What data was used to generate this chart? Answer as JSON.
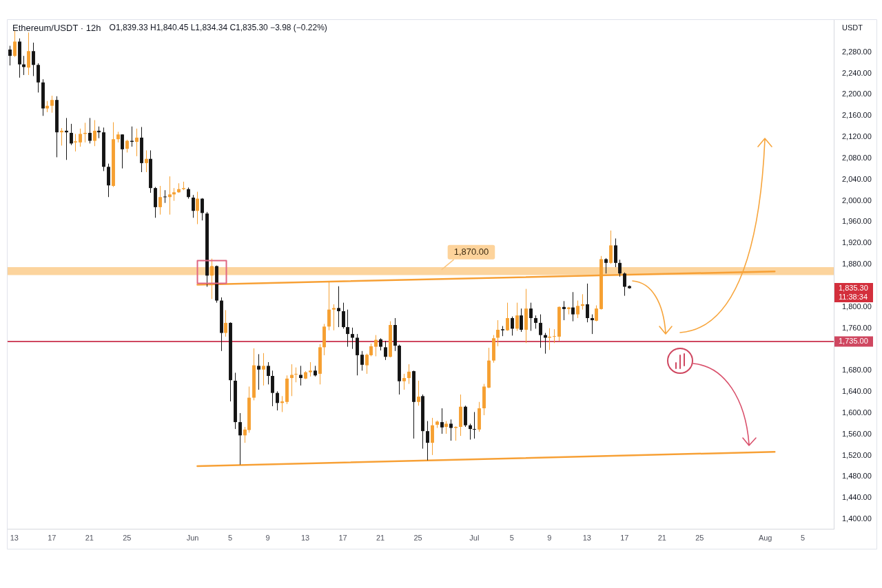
{
  "chart_data": {
    "type": "candlestick",
    "title": "Ethereum/USDT · 12h",
    "subtitle": "O1,839.33 H1,840.45 L1,834.34 C1,835.30 −3.98 (−0.22%)",
    "ylabel": "USDT",
    "x": [
      "--05-12T12:00",
      "--05-13T00:00",
      "--05-13T12:00",
      "--05-14T00:00",
      "--05-14T12:00",
      "--05-15T00:00",
      "--05-15T12:00",
      "--05-16T00:00",
      "--05-16T12:00",
      "--05-17T00:00",
      "--05-17T12:00",
      "--05-18T00:00",
      "--05-18T12:00",
      "--05-19T00:00",
      "--05-19T12:00",
      "--05-20T00:00",
      "--05-20T12:00",
      "--05-21T00:00",
      "--05-21T12:00",
      "--05-22T00:00",
      "--05-22T12:00",
      "--05-23T00:00",
      "--05-23T12:00",
      "--05-24T00:00",
      "--05-24T12:00",
      "--05-25T00:00",
      "--05-25T12:00",
      "--05-26T00:00",
      "--05-26T12:00",
      "--05-27T00:00",
      "--05-27T12:00",
      "--05-28T00:00",
      "--05-28T12:00",
      "--05-29T00:00",
      "--05-29T12:00",
      "--05-30T00:00",
      "--05-30T12:00",
      "--05-31T00:00",
      "--05-31T12:00",
      "--06-01T00:00",
      "--06-01T12:00",
      "--06-02T00:00",
      "--06-02T12:00",
      "--06-03T00:00",
      "--06-03T12:00",
      "--06-04T00:00",
      "--06-04T12:00",
      "--06-05T00:00",
      "--06-05T12:00",
      "--06-06T00:00",
      "--06-06T12:00",
      "--06-07T00:00",
      "--06-07T12:00",
      "--06-08T00:00",
      "--06-08T12:00",
      "--06-09T00:00",
      "--06-09T12:00",
      "--06-10T00:00",
      "--06-10T12:00",
      "--06-11T00:00",
      "--06-11T12:00",
      "--06-12T00:00",
      "--06-12T12:00",
      "--06-13T00:00",
      "--06-13T12:00",
      "--06-14T00:00",
      "--06-14T12:00",
      "--06-15T00:00",
      "--06-15T12:00",
      "--06-16T00:00",
      "--06-16T12:00",
      "--06-17T00:00",
      "--06-17T12:00",
      "--06-18T00:00",
      "--06-18T12:00",
      "--06-19T00:00",
      "--06-19T12:00",
      "--06-20T00:00",
      "--06-20T12:00",
      "--06-21T00:00",
      "--06-21T12:00",
      "--06-22T00:00",
      "--06-22T12:00",
      "--06-23T00:00",
      "--06-23T12:00",
      "--06-24T00:00",
      "--06-24T12:00",
      "--06-25T00:00",
      "--06-25T12:00",
      "--06-26T00:00",
      "--06-26T12:00",
      "--06-27T00:00",
      "--06-27T12:00",
      "--06-28T00:00",
      "--06-28T12:00",
      "--06-29T00:00",
      "--06-29T12:00",
      "--06-30T00:00",
      "--06-30T12:00",
      "--07-01T00:00",
      "--07-01T12:00",
      "--07-02T00:00",
      "--07-02T12:00",
      "--07-03T00:00",
      "--07-03T12:00",
      "--07-04T00:00",
      "--07-04T12:00",
      "--07-05T00:00",
      "--07-05T12:00",
      "--07-06T00:00",
      "--07-06T12:00",
      "--07-07T00:00",
      "--07-07T12:00",
      "--07-08T00:00",
      "--07-08T12:00",
      "--07-09T00:00",
      "--07-09T12:00",
      "--07-10T00:00",
      "--07-10T12:00",
      "--07-11T00:00",
      "--07-11T12:00",
      "--07-12T00:00",
      "--07-12T12:00",
      "--07-13T00:00",
      "--07-13T12:00",
      "--07-14T00:00",
      "--07-14T12:00",
      "--07-15T00:00",
      "--07-15T12:00",
      "--07-16T00:00",
      "--07-16T12:00",
      "--07-17T00:00",
      "--07-17T12:00"
    ],
    "ohlc": [
      [
        2285,
        2292,
        2255,
        2273
      ],
      [
        2273,
        2320,
        2271,
        2300
      ],
      [
        2300,
        2306,
        2232,
        2257
      ],
      [
        2257,
        2273,
        2237,
        2252
      ],
      [
        2251,
        2317,
        2237,
        2282
      ],
      [
        2282,
        2298,
        2235,
        2256
      ],
      [
        2256,
        2259,
        2204,
        2223
      ],
      [
        2223,
        2229,
        2160,
        2174
      ],
      [
        2174,
        2188,
        2167,
        2179
      ],
      [
        2179,
        2198,
        2166,
        2190
      ],
      [
        2190,
        2197,
        2082,
        2129
      ],
      [
        2129,
        2137,
        2104,
        2132
      ],
      [
        2132,
        2156,
        2077,
        2129
      ],
      [
        2128,
        2145,
        2105,
        2108
      ],
      [
        2110,
        2126,
        2093,
        2112
      ],
      [
        2110,
        2136,
        2102,
        2126
      ],
      [
        2126,
        2147,
        2110,
        2128
      ],
      [
        2128,
        2156,
        2108,
        2113
      ],
      [
        2113,
        2152,
        2103,
        2132
      ],
      [
        2132,
        2140,
        2118,
        2129
      ],
      [
        2129,
        2138,
        2056,
        2064
      ],
      [
        2064,
        2070,
        2007,
        2029
      ],
      [
        2028,
        2148,
        2026,
        2116
      ],
      [
        2116,
        2130,
        2110,
        2125
      ],
      [
        2125,
        2125,
        2061,
        2097
      ],
      [
        2098,
        2115,
        2091,
        2113
      ],
      [
        2113,
        2140,
        2102,
        2111
      ],
      [
        2111,
        2136,
        2084,
        2119
      ],
      [
        2119,
        2139,
        2054,
        2071
      ],
      [
        2071,
        2095,
        2054,
        2079
      ],
      [
        2079,
        2095,
        2015,
        2024
      ],
      [
        2024,
        2026,
        1968,
        1988
      ],
      [
        1988,
        2028,
        1974,
        2007
      ],
      [
        2008,
        2020,
        1996,
        2007
      ],
      [
        2007,
        2046,
        1974,
        2012
      ],
      [
        2012,
        2024,
        2000,
        2016
      ],
      [
        2016,
        2033,
        2015,
        2022
      ],
      [
        2022,
        2036,
        2020,
        2024
      ],
      [
        2022,
        2025,
        2004,
        2007
      ],
      [
        2006,
        2011,
        1968,
        1981
      ],
      [
        1981,
        2017,
        1956,
        2004
      ],
      [
        2004,
        2005,
        1963,
        1977
      ],
      [
        1976,
        1979,
        1838,
        1859
      ],
      [
        1859,
        1891,
        1815,
        1877
      ],
      [
        1877,
        1878,
        1808,
        1812
      ],
      [
        1812,
        1818,
        1717,
        1751
      ],
      [
        1751,
        1794,
        1744,
        1770
      ],
      [
        1770,
        1771,
        1622,
        1662
      ],
      [
        1661,
        1676,
        1570,
        1583
      ],
      [
        1583,
        1600,
        1503,
        1558
      ],
      [
        1558,
        1574,
        1544,
        1569
      ],
      [
        1568,
        1650,
        1563,
        1629
      ],
      [
        1629,
        1722,
        1624,
        1690
      ],
      [
        1689,
        1711,
        1644,
        1682
      ],
      [
        1682,
        1713,
        1652,
        1689
      ],
      [
        1689,
        1696,
        1654,
        1670
      ],
      [
        1670,
        1680,
        1613,
        1638
      ],
      [
        1638,
        1641,
        1605,
        1619
      ],
      [
        1619,
        1632,
        1602,
        1622
      ],
      [
        1621,
        1671,
        1617,
        1665
      ],
      [
        1666,
        1692,
        1632,
        1672
      ],
      [
        1673,
        1686,
        1658,
        1674
      ],
      [
        1672,
        1689,
        1652,
        1666
      ],
      [
        1665,
        1679,
        1664,
        1677
      ],
      [
        1677,
        1696,
        1669,
        1680
      ],
      [
        1680,
        1689,
        1669,
        1671
      ],
      [
        1674,
        1730,
        1654,
        1724
      ],
      [
        1724,
        1768,
        1709,
        1763
      ],
      [
        1763,
        1847,
        1756,
        1795
      ],
      [
        1795,
        1805,
        1756,
        1798
      ],
      [
        1798,
        1839,
        1762,
        1792
      ],
      [
        1792,
        1808,
        1759,
        1762
      ],
      [
        1762,
        1795,
        1725,
        1749
      ],
      [
        1749,
        1761,
        1721,
        1742
      ],
      [
        1742,
        1749,
        1671,
        1709
      ],
      [
        1710,
        1717,
        1680,
        1691
      ],
      [
        1690,
        1712,
        1674,
        1710
      ],
      [
        1709,
        1731,
        1707,
        1726
      ],
      [
        1725,
        1747,
        1707,
        1738
      ],
      [
        1739,
        1741,
        1718,
        1725
      ],
      [
        1724,
        1736,
        1700,
        1706
      ],
      [
        1706,
        1773,
        1705,
        1766
      ],
      [
        1766,
        1779,
        1717,
        1727
      ],
      [
        1727,
        1729,
        1635,
        1660
      ],
      [
        1660,
        1674,
        1644,
        1666
      ],
      [
        1666,
        1692,
        1655,
        1678
      ],
      [
        1679,
        1680,
        1552,
        1621
      ],
      [
        1621,
        1661,
        1614,
        1631
      ],
      [
        1632,
        1635,
        1533,
        1566
      ],
      [
        1566,
        1585,
        1511,
        1544
      ],
      [
        1544,
        1591,
        1521,
        1577
      ],
      [
        1578,
        1586,
        1572,
        1584
      ],
      [
        1583,
        1609,
        1561,
        1573
      ],
      [
        1574,
        1585,
        1561,
        1580
      ],
      [
        1580,
        1588,
        1548,
        1572
      ],
      [
        1572,
        1575,
        1548,
        1574
      ],
      [
        1574,
        1635,
        1557,
        1612
      ],
      [
        1612,
        1614,
        1574,
        1577
      ],
      [
        1577,
        1580,
        1550,
        1570
      ],
      [
        1570,
        1602,
        1552,
        1569
      ],
      [
        1569,
        1621,
        1565,
        1609
      ],
      [
        1609,
        1655,
        1596,
        1650
      ],
      [
        1648,
        1723,
        1647,
        1699
      ],
      [
        1699,
        1747,
        1695,
        1741
      ],
      [
        1742,
        1775,
        1726,
        1757
      ],
      [
        1758,
        1764,
        1745,
        1756
      ],
      [
        1756,
        1808,
        1755,
        1779
      ],
      [
        1779,
        1782,
        1746,
        1759
      ],
      [
        1759,
        1808,
        1755,
        1784
      ],
      [
        1784,
        1797,
        1753,
        1757
      ],
      [
        1757,
        1834,
        1732,
        1797
      ],
      [
        1797,
        1808,
        1755,
        1779
      ],
      [
        1779,
        1784,
        1759,
        1770
      ],
      [
        1770,
        1786,
        1723,
        1747
      ],
      [
        1747,
        1751,
        1712,
        1742
      ],
      [
        1742,
        1760,
        1719,
        1744
      ],
      [
        1744,
        1758,
        1732,
        1745
      ],
      [
        1744,
        1801,
        1736,
        1800
      ],
      [
        1800,
        1811,
        1775,
        1796
      ],
      [
        1796,
        1800,
        1786,
        1799
      ],
      [
        1799,
        1828,
        1773,
        1786
      ],
      [
        1786,
        1812,
        1779,
        1802
      ],
      [
        1802,
        1824,
        1795,
        1805
      ],
      [
        1805,
        1844,
        1771,
        1779
      ],
      [
        1779,
        1786,
        1749,
        1775
      ],
      [
        1774,
        1803,
        1773,
        1797
      ],
      [
        1796,
        1896,
        1795,
        1890
      ],
      [
        1890,
        1892,
        1863,
        1883
      ],
      [
        1883,
        1944,
        1881,
        1916
      ],
      [
        1916,
        1929,
        1875,
        1883
      ],
      [
        1883,
        1889,
        1857,
        1863
      ],
      [
        1863,
        1865,
        1821,
        1838
      ],
      [
        1839.33,
        1840.45,
        1834.34,
        1835.3
      ]
    ],
    "colors": [
      "#141414",
      "#f6a031",
      "#141414",
      "#141414",
      "#f6a031",
      "#141414",
      "#141414",
      "#141414",
      "#f6a031",
      "#f6a031",
      "#141414",
      "#f6a031",
      "#141414",
      "#141414",
      "#f6a031",
      "#f6a031",
      "#f6a031",
      "#141414",
      "#f6a031",
      "#141414",
      "#141414",
      "#141414",
      "#f6a031",
      "#f6a031",
      "#141414",
      "#f6a031",
      "#141414",
      "#f6a031",
      "#141414",
      "#f6a031",
      "#141414",
      "#141414",
      "#f6a031",
      "#141414",
      "#f6a031",
      "#f6a031",
      "#f6a031",
      "#f6a031",
      "#141414",
      "#141414",
      "#f6a031",
      "#141414",
      "#141414",
      "#f6a031",
      "#141414",
      "#141414",
      "#f6a031",
      "#141414",
      "#141414",
      "#141414",
      "#f6a031",
      "#f6a031",
      "#f6a031",
      "#141414",
      "#f6a031",
      "#141414",
      "#141414",
      "#141414",
      "#f6a031",
      "#f6a031",
      "#f6a031",
      "#f6a031",
      "#141414",
      "#f6a031",
      "#f6a031",
      "#141414",
      "#f6a031",
      "#f6a031",
      "#f6a031",
      "#f6a031",
      "#141414",
      "#141414",
      "#141414",
      "#141414",
      "#141414",
      "#141414",
      "#f6a031",
      "#f6a031",
      "#f6a031",
      "#141414",
      "#141414",
      "#f6a031",
      "#141414",
      "#141414",
      "#f6a031",
      "#f6a031",
      "#141414",
      "#f6a031",
      "#141414",
      "#141414",
      "#f6a031",
      "#f6a031",
      "#141414",
      "#f6a031",
      "#141414",
      "#f6a031",
      "#f6a031",
      "#141414",
      "#141414",
      "#141414",
      "#f6a031",
      "#f6a031",
      "#f6a031",
      "#f6a031",
      "#f6a031",
      "#141414",
      "#f6a031",
      "#141414",
      "#f6a031",
      "#141414",
      "#f6a031",
      "#141414",
      "#141414",
      "#141414",
      "#141414",
      "#f6a031",
      "#f6a031",
      "#f6a031",
      "#141414",
      "#f6a031",
      "#141414",
      "#f6a031",
      "#f6a031",
      "#141414",
      "#141414",
      "#f6a031",
      "#f6a031",
      "#141414",
      "#f6a031",
      "#141414",
      "#141414",
      "#141414",
      "#141414"
    ],
    "series": [
      {
        "type": "line",
        "color": "#f7a035",
        "x": [
          "--06-01T12:00",
          "--08-02"
        ],
        "values": [
          1842,
          1867
        ]
      },
      {
        "type": "line",
        "color": "#f7a035",
        "x": [
          "--06-01T12:00",
          "--08-02"
        ],
        "values": [
          1500,
          1527
        ]
      }
    ],
    "marker": "none",
    "xlim": [
      "--05-12T05:00",
      "--08-08T07:00"
    ],
    "xticks": [
      {
        "value": "--05-13",
        "label": "13"
      },
      {
        "value": "--05-17",
        "label": "17"
      },
      {
        "value": "--05-21",
        "label": "21"
      },
      {
        "value": "--05-25",
        "label": "25"
      },
      {
        "value": "--06-01",
        "label": "Jun"
      },
      {
        "value": "--06-05",
        "label": "5"
      },
      {
        "value": "--06-09",
        "label": "9"
      },
      {
        "value": "--06-13",
        "label": "13"
      },
      {
        "value": "--06-17",
        "label": "17"
      },
      {
        "value": "--06-21",
        "label": "21"
      },
      {
        "value": "--06-25",
        "label": "25"
      },
      {
        "value": "--07-01",
        "label": "Jul"
      },
      {
        "value": "--07-05",
        "label": "5"
      },
      {
        "value": "--07-09",
        "label": "9"
      },
      {
        "value": "--07-13",
        "label": "13"
      },
      {
        "value": "--07-17",
        "label": "17"
      },
      {
        "value": "--07-21",
        "label": "21"
      },
      {
        "value": "--07-25",
        "label": "25"
      },
      {
        "value": "--08-01",
        "label": "Aug"
      },
      {
        "value": "--08-05",
        "label": "5"
      }
    ],
    "ylim": [
      1382,
      2342
    ],
    "yticks": [
      {
        "value": 1400,
        "label": "1,400.00"
      },
      {
        "value": 1440,
        "label": "1,440.00"
      },
      {
        "value": 1480,
        "label": "1,480.00"
      },
      {
        "value": 1520,
        "label": "1,520.00"
      },
      {
        "value": 1560,
        "label": "1,560.00"
      },
      {
        "value": 1600,
        "label": "1,600.00"
      },
      {
        "value": 1640,
        "label": "1,640.00"
      },
      {
        "value": 1680,
        "label": "1,680.00"
      },
      {
        "value": 1760,
        "label": "1,760.00"
      },
      {
        "value": 1800,
        "label": "1,800.00"
      },
      {
        "value": 1880,
        "label": "1,880.00"
      },
      {
        "value": 1920,
        "label": "1,920.00"
      },
      {
        "value": 1960,
        "label": "1,960.00"
      },
      {
        "value": 2000,
        "label": "2,000.00"
      },
      {
        "value": 2040,
        "label": "2,040.00"
      },
      {
        "value": 2080,
        "label": "2,080.00"
      },
      {
        "value": 2120,
        "label": "2,120.00"
      },
      {
        "value": 2160,
        "label": "2,160.00"
      },
      {
        "value": 2200,
        "label": "2,200.00"
      },
      {
        "value": 2240,
        "label": "2,240.00"
      },
      {
        "value": 2280,
        "label": "2,280.00"
      }
    ],
    "bands": [
      {
        "axis": "y",
        "from": 1860,
        "to": 1875,
        "color": "#fcd49d"
      }
    ],
    "ref_lines": [
      {
        "axis": "y",
        "value": 1735,
        "label": "1,735.00",
        "color": "#cf4760"
      }
    ],
    "annotations": [
      {
        "text": "1,870.00",
        "x": "--06-27T12:00",
        "y": 1870
      },
      "1,835.30",
      "11:38:34"
    ]
  }
}
